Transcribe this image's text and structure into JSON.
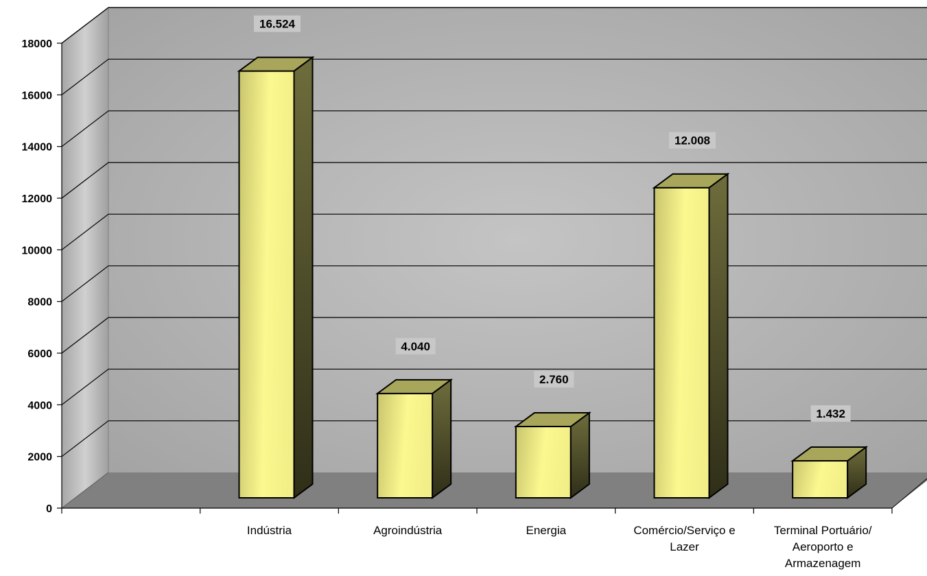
{
  "chart_data": {
    "type": "bar",
    "categories": [
      "",
      "Indústria",
      "Agroindústria",
      "Energia",
      "Comércio/Serviço e Lazer",
      "Terminal Portuário/ Aeroporto e Armazenagem"
    ],
    "category_lines": [
      [],
      [
        "Indústria"
      ],
      [
        "Agroindústria"
      ],
      [
        "Energia"
      ],
      [
        "Comércio/Serviço e",
        "Lazer"
      ],
      [
        "Terminal Portuário/",
        "Aeroporto e",
        "Armazenagem"
      ]
    ],
    "values": [
      null,
      16524,
      4040,
      2760,
      12008,
      1432
    ],
    "data_labels": [
      "",
      "16.524",
      "4.040",
      "2.760",
      "12.008",
      "1.432"
    ],
    "y_ticks": [
      0,
      2000,
      4000,
      6000,
      8000,
      10000,
      12000,
      14000,
      16000,
      18000
    ],
    "ylim": [
      0,
      18000
    ],
    "grid": true,
    "three_d": true,
    "bar_color": "#f5f28a",
    "bar_side_color": "#6b6a3a",
    "bar_top_color": "#a8a65a",
    "wall_color": "#b4b4b4",
    "floor_color": "#808080",
    "title": "",
    "xlabel": "",
    "ylabel": ""
  }
}
